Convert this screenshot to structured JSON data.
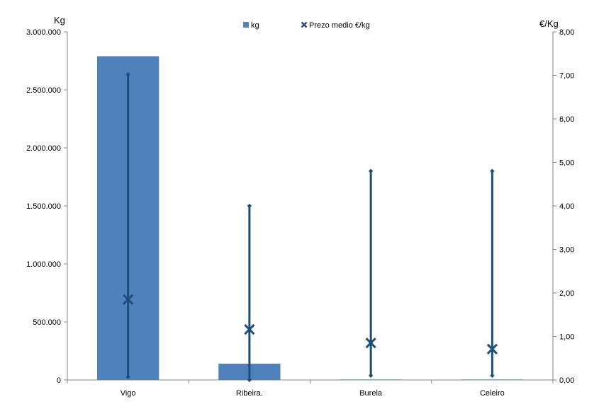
{
  "chart_data": {
    "type": "bar",
    "categories": [
      "Vigo",
      "Ribeira.",
      "Burela",
      "Celeiro"
    ],
    "series": [
      {
        "name": "kg",
        "axis": "left",
        "values": [
          2790000,
          140000,
          4000,
          4000
        ]
      },
      {
        "name": "Prezo medio €/kg",
        "axis": "right",
        "marker": "x",
        "values": [
          1.85,
          1.16,
          0.85,
          0.71
        ],
        "range_min": [
          0.07,
          0.0,
          0.1,
          0.1
        ],
        "range_max": [
          7.02,
          4.0,
          4.8,
          4.8
        ]
      }
    ],
    "left_axis": {
      "unit": "Kg",
      "ylim": [
        0,
        3000000
      ],
      "tick_labels": [
        "0",
        "500.000",
        "1.000.000",
        "1.500.000",
        "2.000.000",
        "2.500.000",
        "3.000.000"
      ]
    },
    "right_axis": {
      "unit": "€/Kg",
      "ylim": [
        0,
        8
      ],
      "tick_labels": [
        "0,00",
        "1,00",
        "2,00",
        "3,00",
        "4,00",
        "5,00",
        "6,00",
        "7,00",
        "8,00"
      ]
    },
    "legend": {
      "position": "top",
      "items": [
        "kg",
        "Prezo medio €/kg"
      ]
    },
    "grid": false,
    "colors": {
      "bar": "#4f81bd",
      "line": "#1f4e79",
      "axis": "#868686"
    }
  }
}
